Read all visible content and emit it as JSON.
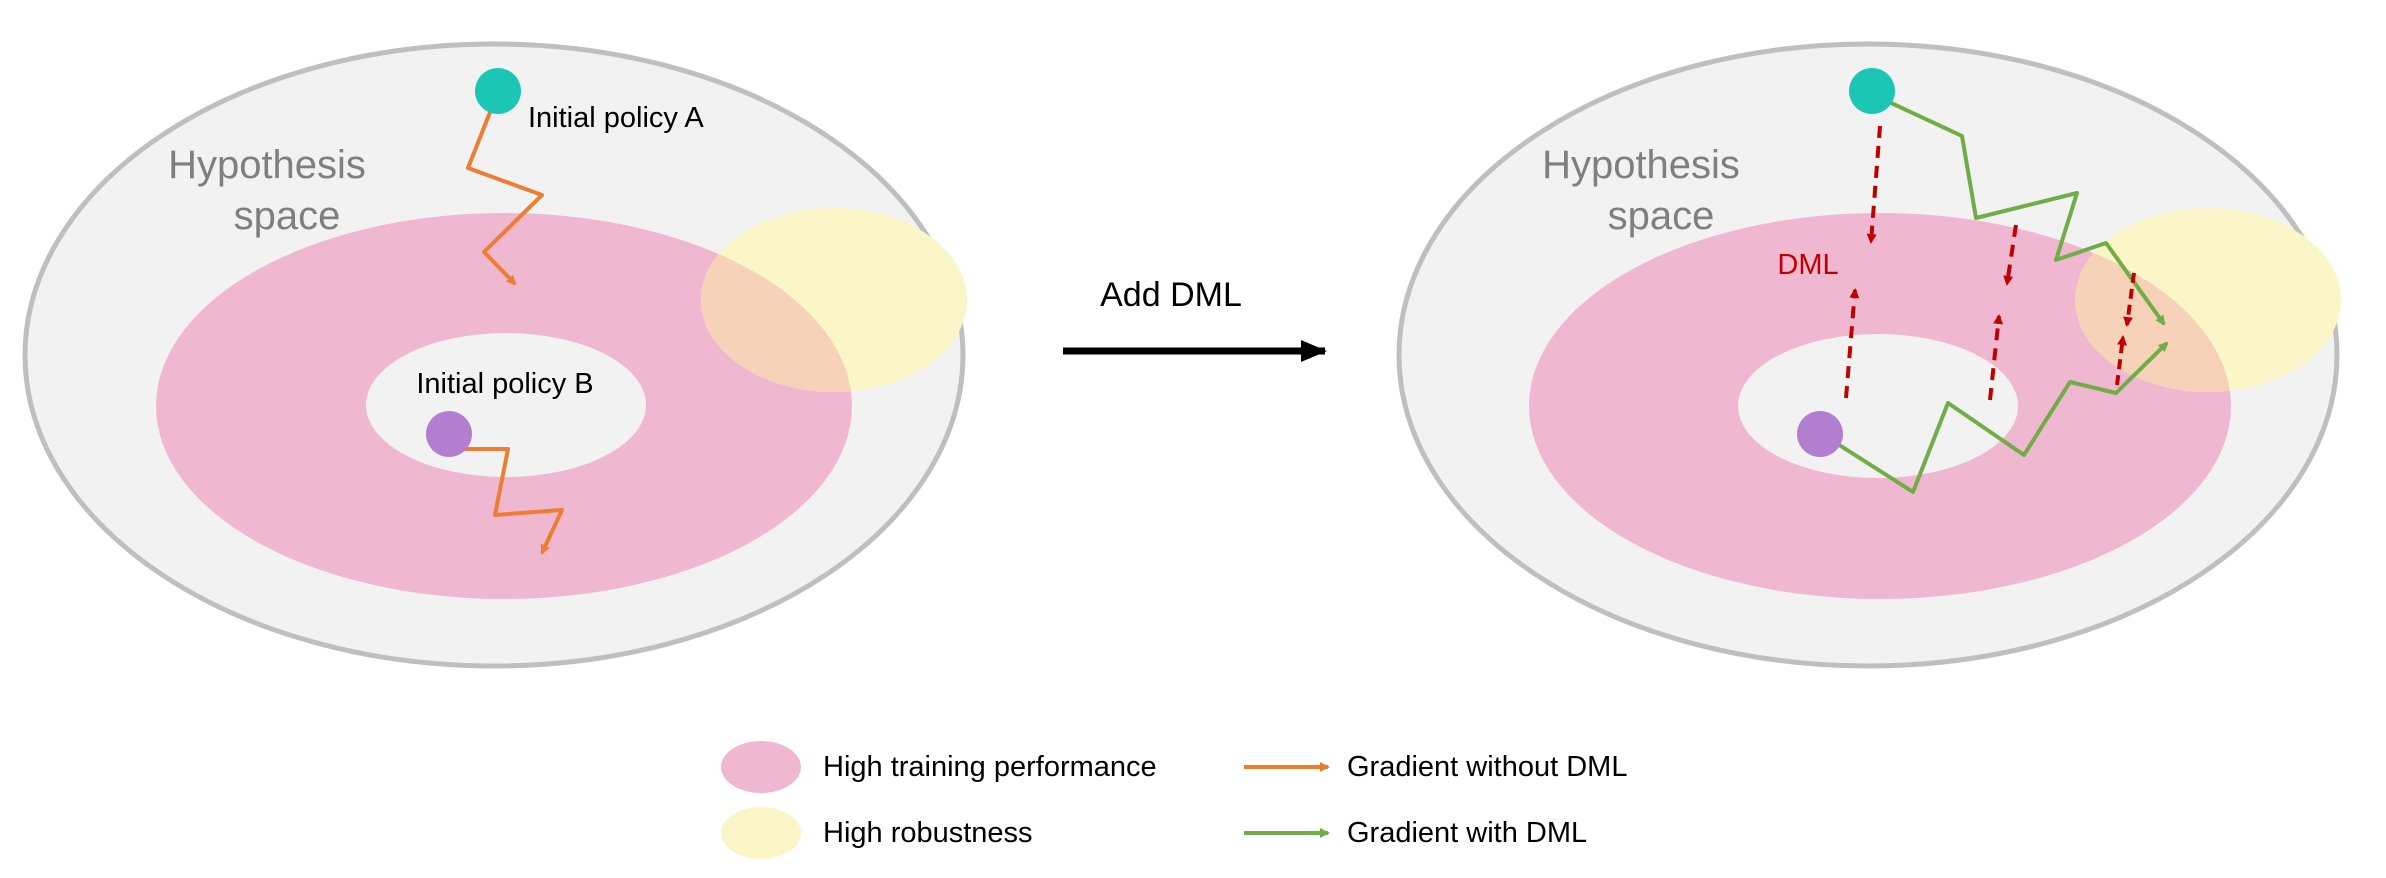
{
  "left_panel": {
    "space_label_line1": "Hypothesis",
    "space_label_line2": "space",
    "policy_a_label": "Initial policy A",
    "policy_b_label": "Initial policy B"
  },
  "middle": {
    "transition_label": "Add DML"
  },
  "right_panel": {
    "space_label_line1": "Hypothesis",
    "space_label_line2": "space",
    "dml_label": "DML"
  },
  "legend": {
    "high_training": "High training performance",
    "high_robustness": "High robustness",
    "gradient_without": "Gradient without DML",
    "gradient_with": "Gradient with DML"
  },
  "colors": {
    "hypothesis_fill": "#f2f2f2",
    "hypothesis_stroke": "#bfbfbf",
    "training_region": "#efb8d0",
    "robust_region": "#fbf6c8",
    "overlap_region": "#f5d2b8",
    "policy_a": "#1bc6b4",
    "policy_b": "#b47ed0",
    "gradient_without": "#ed7d31",
    "gradient_with": "#70ad47",
    "dml_arrow": "#c00000",
    "label_gray": "#7f7f7f"
  }
}
